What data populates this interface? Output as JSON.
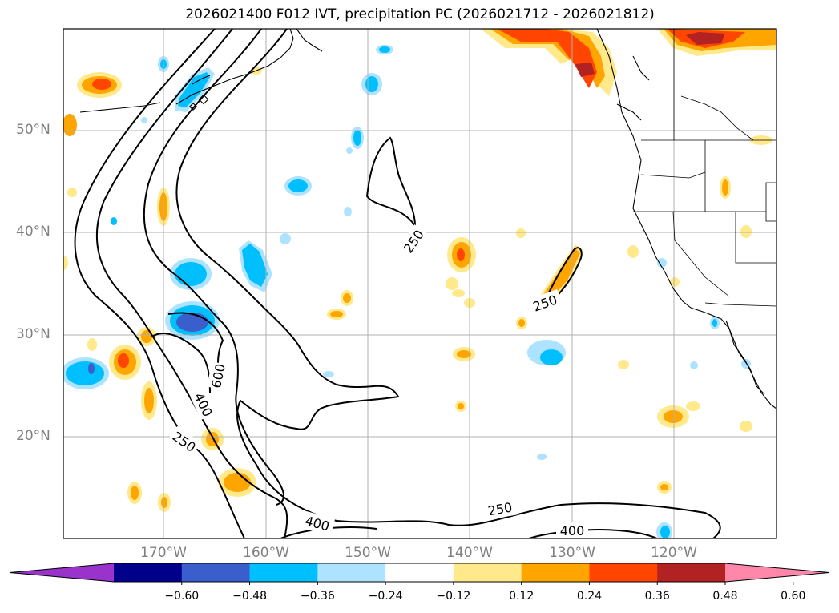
{
  "title": "2026021400 F012 IVT, precipitation PC (2026021712 - 2026021812)",
  "latitude_labels": [
    "50°N",
    "40°N",
    "30°N",
    "20°N"
  ],
  "longitude_labels": [
    "170°W",
    "160°W",
    "150°W",
    "140°W",
    "130°W",
    "120°W"
  ],
  "ivt_contour_labels": [
    "250",
    "250",
    "600",
    "400",
    "250",
    "250",
    "400",
    "400"
  ],
  "colorbar": {
    "ticks": [
      "−0.60",
      "−0.48",
      "−0.36",
      "−0.24",
      "−0.12",
      "0.12",
      "0.24",
      "0.36",
      "0.48",
      "0.60"
    ],
    "colors": [
      "#9933cc",
      "#00008b",
      "#3a5fcd",
      "#00bfff",
      "#aee3ff",
      "#ffffff",
      "#ffe98a",
      "#ffa500",
      "#ff4500",
      "#b22222",
      "#ff88aa"
    ]
  }
}
